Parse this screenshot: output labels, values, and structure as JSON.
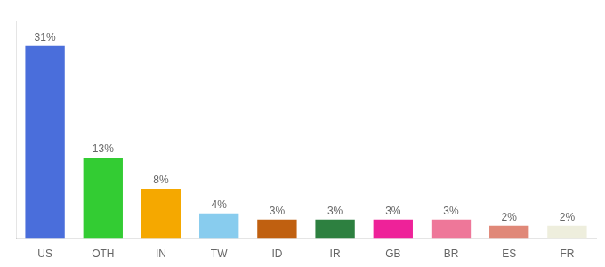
{
  "chart_data": {
    "type": "bar",
    "categories": [
      "US",
      "OTH",
      "IN",
      "TW",
      "ID",
      "IR",
      "GB",
      "BR",
      "ES",
      "FR"
    ],
    "values": [
      31,
      13,
      8,
      4,
      3,
      3,
      3,
      3,
      2,
      2
    ],
    "value_labels": [
      "31%",
      "13%",
      "8%",
      "4%",
      "3%",
      "3%",
      "3%",
      "3%",
      "2%",
      "2%"
    ],
    "colors": [
      "#4a6edb",
      "#33cc33",
      "#f5a800",
      "#88ccee",
      "#c06010",
      "#2d8040",
      "#ee2299",
      "#ee7799",
      "#e08878",
      "#eeeedd"
    ],
    "ylim": [
      0,
      35
    ],
    "grid": false,
    "data_labels": true,
    "tick_labels": "x"
  }
}
